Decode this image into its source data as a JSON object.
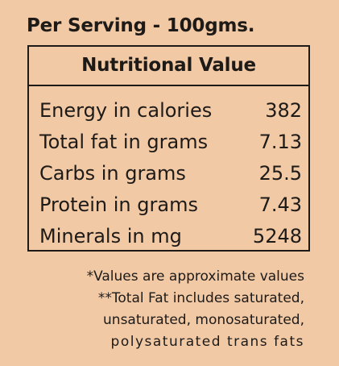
{
  "header": {
    "title": "Per Serving - 100gms."
  },
  "panel": {
    "title": "Nutritional Value",
    "rows": [
      {
        "label": "Energy in calories",
        "value": "382"
      },
      {
        "label": "Total fat in grams",
        "value": "7.13"
      },
      {
        "label": "Carbs in grams",
        "value": "25.5"
      },
      {
        "label": "Protein in grams",
        "value": "7.43"
      },
      {
        "label": "Minerals in mg",
        "value": "5248"
      }
    ]
  },
  "notes": {
    "line1": "*Values are approximate values",
    "line2": "**Total Fat includes saturated,",
    "line3": "unsaturated, monosaturated,",
    "line4": "polysaturated trans fats"
  },
  "colors": {
    "background": "#f2c9a5",
    "text": "#1d1a18",
    "border": "#1d1a18"
  }
}
